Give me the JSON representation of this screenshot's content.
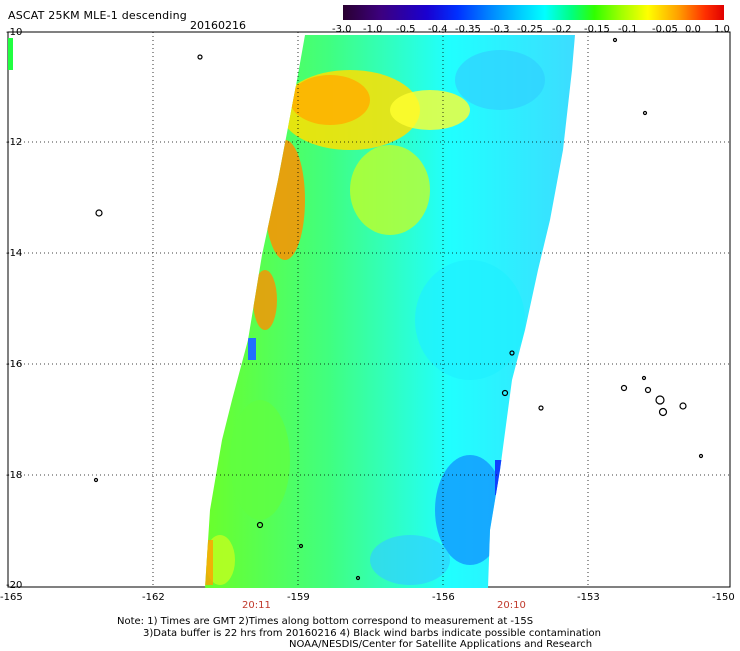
{
  "header": {
    "title": "ASCAT 25KM MLE-1 descending",
    "date": "20160216"
  },
  "colorbar": {
    "labels": [
      "-3.0",
      "-1.0",
      "-0.5",
      "-0.4",
      "-0.35",
      "-0.3",
      "-0.25",
      "-0.2",
      "-0.15",
      "-0.1",
      "-0.05",
      "0.0",
      "1.0"
    ],
    "colors": [
      "#2a0030",
      "#3c007f",
      "#1a00d0",
      "#0030ff",
      "#0080ff",
      "#00c8ff",
      "#00ffff",
      "#00ff80",
      "#30ff00",
      "#a0ff00",
      "#ffff00",
      "#ffa000",
      "#ff3000",
      "#e00000"
    ]
  },
  "axes": {
    "lat_labels": [
      "-10",
      "-12",
      "-14",
      "-16",
      "-18",
      "-20"
    ],
    "lon_labels": [
      "-165",
      "-162",
      "-159",
      "-156",
      "-153",
      "-150"
    ]
  },
  "times": [
    "20:11",
    "20:10"
  ],
  "notes": [
    "Note: 1) Times are GMT 2)Times along bottom correspond to measurement at -15S",
    "3)Data buffer is 22 hrs from 20160216 4) Black wind barbs indicate possible contamination",
    "NOAA/NESDIS/Center for Satellite Applications and Research"
  ]
}
